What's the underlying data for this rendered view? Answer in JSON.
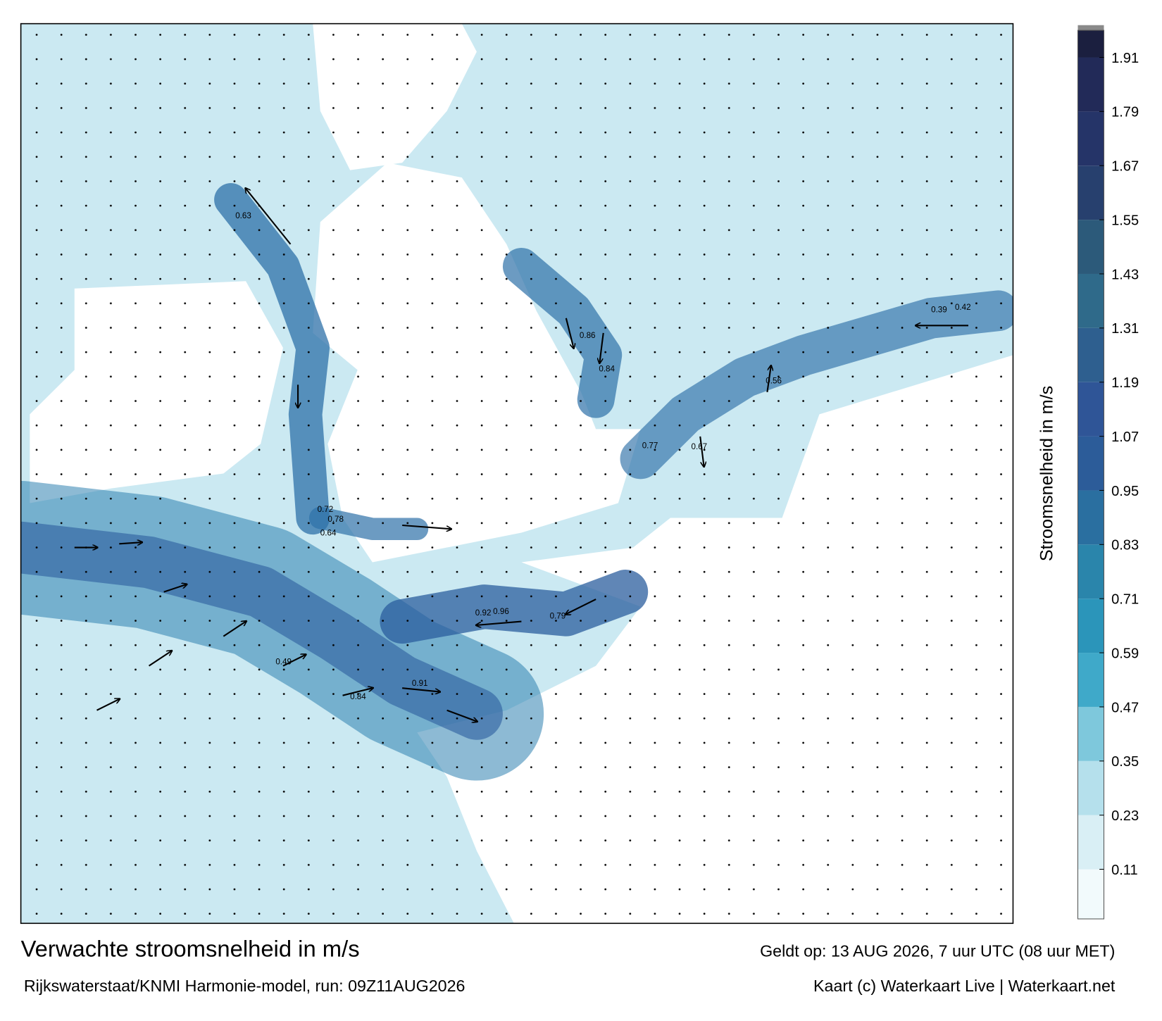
{
  "title": "Verwachte stroomsnelheid in m/s",
  "subtitle": "Rijkswaterstaat/KNMI Harmonie-model, run: 09Z11AUG2026",
  "valid": "Geldt op: 13 AUG 2026, 7 uur UTC (08 uur MET)",
  "credit": "Kaart (c) Waterkaart Live | Waterkaart.net",
  "colorbar": {
    "label": "Stroomsnelheid in m/s",
    "lim": [
      0,
      1.97
    ],
    "ticks": [
      0.11,
      0.23,
      0.35,
      0.47,
      0.59,
      0.71,
      0.83,
      0.95,
      1.07,
      1.19,
      1.31,
      1.43,
      1.55,
      1.67,
      1.79,
      1.91
    ],
    "colors": [
      "#f2fafc",
      "#d9eff5",
      "#b5e0ec",
      "#7ec8dc",
      "#3fa9c9",
      "#2b95ba",
      "#2a85ab",
      "#2a6fa0",
      "#2c5c99",
      "#2f5597",
      "#2e5f8f",
      "#2f6a8a",
      "#2c5a7a",
      "#27406e",
      "#253468",
      "#222a58",
      "#1b1f3f"
    ]
  },
  "map": {
    "labels": [
      0.78,
      0.92,
      0.96,
      0.79,
      0.84,
      0.86,
      0.63,
      0.72,
      0.64,
      0.49,
      0.84,
      0.91,
      0.77,
      0.67,
      0.56,
      0.42,
      0.39
    ]
  }
}
